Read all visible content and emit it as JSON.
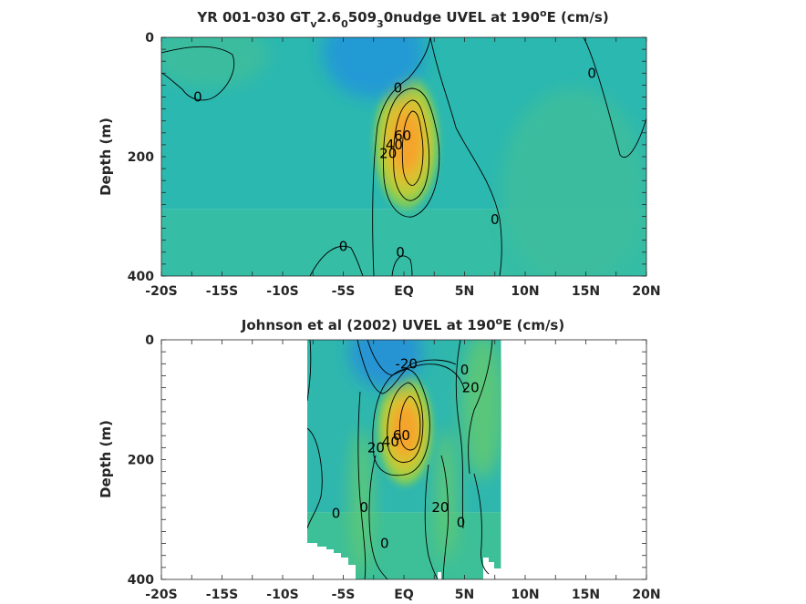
{
  "chart_data": [
    {
      "type": "heatmap",
      "title": {
        "prefix": "YR 001-030 GT",
        "s1": "v",
        "t1": "2.6",
        "s2": "0",
        "t2": "509",
        "s3": "3",
        "t3": "0nudge UVEL at 190",
        "sup": "o",
        "t4": "E (cm/s)"
      },
      "ylabel": "Depth (m)",
      "xlim": [
        -20,
        20
      ],
      "ylim": [
        400,
        0
      ],
      "x_ticks": [
        -20,
        -17.5,
        -15,
        -12.5,
        -10,
        -7.5,
        -5,
        -2.5,
        0,
        2.5,
        5,
        7.5,
        10,
        12.5,
        15,
        17.5,
        20
      ],
      "x_tick_labels": [
        "-20S",
        "-15S",
        "-10S",
        "-5S",
        "EQ",
        "5N",
        "10N",
        "15N",
        "20N"
      ],
      "x_tick_label_values": [
        -20,
        -15,
        -10,
        -5,
        0,
        5,
        10,
        15,
        20
      ],
      "y_tick_labels": [
        "0",
        "200",
        "400"
      ],
      "y_tick_label_values": [
        0,
        200,
        400
      ],
      "data_coverage": {
        "lat_min": -20,
        "lat_max": 20
      },
      "background": {
        "base": "#2bb8b0",
        "bottom": "#35bda5"
      },
      "features": [
        {
          "name": "undercurrent-core",
          "lat": 0.2,
          "depth": 175,
          "peak_cms": 80,
          "rx": 2.0,
          "ry": 85
        },
        {
          "name": "surface-westward",
          "lat": -2.5,
          "depth": 25,
          "peak_cms": -25,
          "rx": 3.5,
          "ry": 70
        },
        {
          "name": "south-surface-east",
          "lat": -16,
          "depth": 30,
          "peak_cms": 5,
          "rx": 4,
          "ry": 50
        },
        {
          "name": "north-deep",
          "lat": 14,
          "depth": 250,
          "peak_cms": 5,
          "rx": 5,
          "ry": 150
        }
      ],
      "contour_labels": [
        {
          "text": "0",
          "lat": -17,
          "depth": 100
        },
        {
          "text": "0",
          "lat": -0.5,
          "depth": 85
        },
        {
          "text": "0",
          "lat": 15.5,
          "depth": 60
        },
        {
          "text": "0",
          "lat": 7.5,
          "depth": 305
        },
        {
          "text": "0",
          "lat": -5,
          "depth": 350
        },
        {
          "text": "0",
          "lat": -0.3,
          "depth": 360
        },
        {
          "text": "20",
          "lat": -1.3,
          "depth": 195
        },
        {
          "text": "40",
          "lat": -0.8,
          "depth": 180
        },
        {
          "text": "60",
          "lat": -0.1,
          "depth": 165
        }
      ],
      "contour_levels": [
        0,
        20,
        40,
        60
      ]
    },
    {
      "type": "heatmap",
      "title": {
        "prefix": "Johnson et al (2002) UVEL at 190",
        "sup": "o",
        "t4": "E (cm/s)"
      },
      "ylabel": "Depth (m)",
      "xlim": [
        -20,
        20
      ],
      "ylim": [
        400,
        0
      ],
      "x_ticks": [
        -20,
        -17.5,
        -15,
        -12.5,
        -10,
        -7.5,
        -5,
        -2.5,
        0,
        2.5,
        5,
        7.5,
        10,
        12.5,
        15,
        17.5,
        20
      ],
      "x_tick_labels": [
        "-20S",
        "-15S",
        "-10S",
        "-5S",
        "EQ",
        "5N",
        "10N",
        "15N",
        "20N"
      ],
      "x_tick_label_values": [
        -20,
        -15,
        -10,
        -5,
        0,
        5,
        10,
        15,
        20
      ],
      "y_tick_labels": [
        "0",
        "200",
        "400"
      ],
      "y_tick_label_values": [
        0,
        200,
        400
      ],
      "data_coverage": {
        "lat_min": -8,
        "lat_max": 8
      },
      "background": {
        "base": "#2fb7ae",
        "bottom": "#3dbf98"
      },
      "features": [
        {
          "name": "undercurrent-core",
          "lat": 0.1,
          "depth": 150,
          "peak_cms": 80,
          "rx": 1.7,
          "ry": 70
        },
        {
          "name": "surface-westward",
          "lat": -1.5,
          "depth": 20,
          "peak_cms": -30,
          "rx": 2.5,
          "ry": 55
        },
        {
          "name": "nsccs",
          "lat": -3.5,
          "depth": 270,
          "peak_cms": 15,
          "rx": 0.8,
          "ry": 110
        },
        {
          "name": "nsccn",
          "lat": 3.5,
          "depth": 260,
          "peak_cms": 15,
          "rx": 0.8,
          "ry": 100
        },
        {
          "name": "necc",
          "lat": 6.5,
          "depth": 110,
          "peak_cms": 15,
          "rx": 1.5,
          "ry": 110
        }
      ],
      "contour_labels": [
        {
          "text": "-20",
          "lat": 0.2,
          "depth": 40
        },
        {
          "text": "0",
          "lat": 5,
          "depth": 50
        },
        {
          "text": "20",
          "lat": 5.5,
          "depth": 80
        },
        {
          "text": "20",
          "lat": -2.3,
          "depth": 180
        },
        {
          "text": "40",
          "lat": -1.1,
          "depth": 170
        },
        {
          "text": "60",
          "lat": -0.2,
          "depth": 160
        },
        {
          "text": "0",
          "lat": -3.3,
          "depth": 280
        },
        {
          "text": "0",
          "lat": -5.6,
          "depth": 290
        },
        {
          "text": "20",
          "lat": 3,
          "depth": 280
        },
        {
          "text": "0",
          "lat": 4.7,
          "depth": 305
        },
        {
          "text": "0",
          "lat": -1.6,
          "depth": 340
        }
      ],
      "contour_levels": [
        -20,
        0,
        20,
        40,
        60
      ]
    }
  ]
}
